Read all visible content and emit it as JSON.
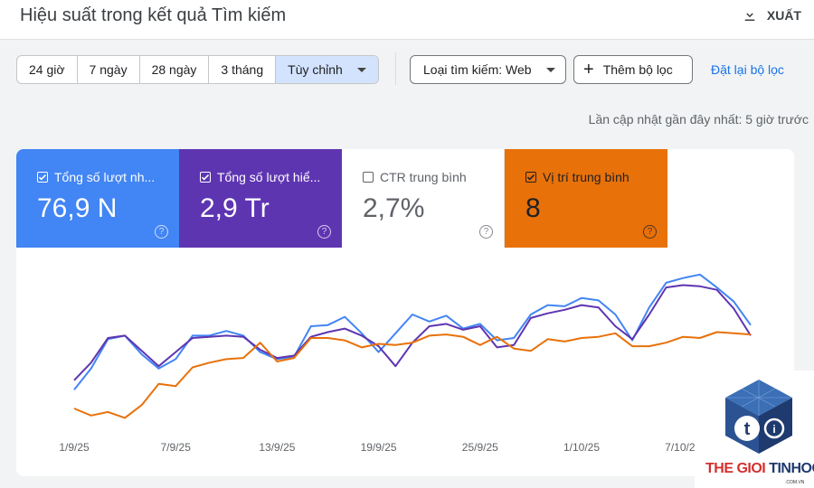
{
  "header": {
    "title": "Hiệu suất trong kết quả Tìm kiếm",
    "export_label": "XUẤT"
  },
  "filters": {
    "date_ranges": [
      "24 giờ",
      "7 ngày",
      "28 ngày",
      "3 tháng",
      "Tùy chỉnh"
    ],
    "active_range": "Tùy chỉnh",
    "search_type": "Loại tìm kiếm: Web",
    "add_filter": "Thêm bộ lọc",
    "reset": "Đặt lại bộ lọc"
  },
  "last_updated": "Lần cập nhật gần đây nhất: 5 giờ trước",
  "metrics": [
    {
      "label": "Tổng số lượt nh...",
      "value": "76,9 N",
      "checked": true,
      "color": "#4285f4"
    },
    {
      "label": "Tổng số lượt hiể...",
      "value": "2,9 Tr",
      "checked": true,
      "color": "#5e35b1"
    },
    {
      "label": "CTR trung bình",
      "value": "2,7%",
      "checked": false,
      "color": "#ffffff"
    },
    {
      "label": "Vị trí trung bình",
      "value": "8",
      "checked": true,
      "color": "#e8710a"
    }
  ],
  "chart_data": {
    "type": "line",
    "x_tick_labels": [
      "1/9/25",
      "7/9/25",
      "13/9/25",
      "19/9/25",
      "25/9/25",
      "1/10/25",
      "7/10/25"
    ],
    "x": [
      "1/9",
      "2/9",
      "3/9",
      "4/9",
      "5/9",
      "6/9",
      "7/9",
      "8/9",
      "9/9",
      "10/9",
      "11/9",
      "12/9",
      "13/9",
      "14/9",
      "15/9",
      "16/9",
      "17/9",
      "18/9",
      "19/9",
      "20/9",
      "21/9",
      "22/9",
      "23/9",
      "24/9",
      "25/9",
      "26/9",
      "27/9",
      "28/9",
      "29/9",
      "30/9",
      "1/10",
      "2/10",
      "3/10",
      "4/10",
      "5/10",
      "6/10",
      "7/10",
      "8/10",
      "9/10",
      "10/10",
      "11/10"
    ],
    "normalized": true,
    "series": [
      {
        "color": "#4285f4",
        "values": [
          0.26,
          0.44,
          0.69,
          0.72,
          0.56,
          0.44,
          0.52,
          0.72,
          0.72,
          0.76,
          0.72,
          0.58,
          0.52,
          0.54,
          0.8,
          0.81,
          0.88,
          0.74,
          0.58,
          0.74,
          0.9,
          0.84,
          0.89,
          0.78,
          0.82,
          0.68,
          0.7,
          0.9,
          0.98,
          0.97,
          1.04,
          1.02,
          0.9,
          0.68,
          0.96,
          1.17,
          1.21,
          1.24,
          1.13,
          1.01,
          0.81
        ]
      },
      {
        "color": "#5e35b1",
        "values": [
          0.34,
          0.49,
          0.7,
          0.72,
          0.59,
          0.46,
          0.58,
          0.7,
          0.71,
          0.72,
          0.71,
          0.6,
          0.53,
          0.55,
          0.71,
          0.75,
          0.78,
          0.72,
          0.63,
          0.46,
          0.66,
          0.8,
          0.82,
          0.77,
          0.8,
          0.62,
          0.64,
          0.87,
          0.91,
          0.94,
          0.98,
          0.96,
          0.8,
          0.69,
          0.9,
          1.13,
          1.15,
          1.14,
          1.11,
          0.95,
          0.72
        ]
      },
      {
        "color": "#e8710a",
        "values": [
          0.1,
          0.04,
          0.07,
          0.02,
          0.13,
          0.31,
          0.29,
          0.45,
          0.49,
          0.52,
          0.53,
          0.66,
          0.5,
          0.53,
          0.7,
          0.7,
          0.68,
          0.62,
          0.65,
          0.64,
          0.66,
          0.72,
          0.73,
          0.71,
          0.64,
          0.71,
          0.61,
          0.59,
          0.69,
          0.67,
          0.7,
          0.71,
          0.74,
          0.63,
          0.63,
          0.66,
          0.71,
          0.7,
          0.75,
          0.74,
          0.73
        ]
      }
    ]
  },
  "logo": {
    "brand_red": "THE GIOI",
    "brand_blue": "TINHOC",
    "sub": ".COM.VN",
    "icon": "cube-t-logo-icon"
  }
}
